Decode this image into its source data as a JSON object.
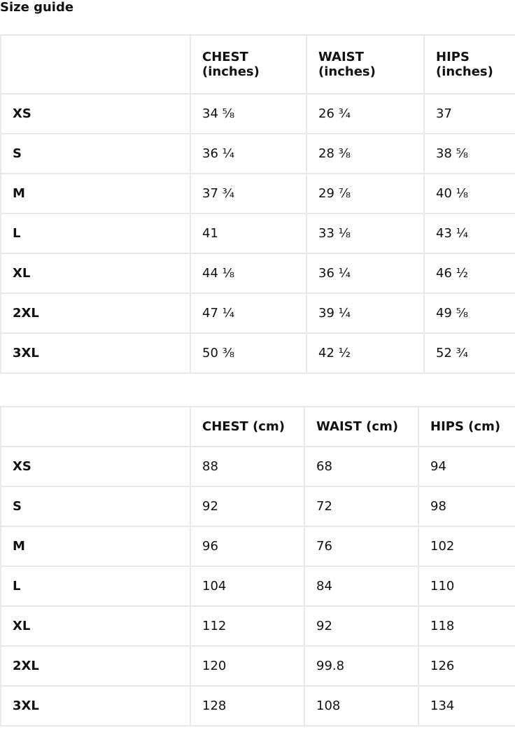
{
  "title": "Size guide",
  "inches_table": {
    "headers": [
      "",
      "CHEST (inches)",
      "WAIST (inches)",
      "HIPS (inches)"
    ],
    "rows": [
      [
        "XS",
        "34 ⅝",
        "26 ¾",
        "37"
      ],
      [
        "S",
        "36 ¼",
        "28 ⅜",
        "38 ⅝"
      ],
      [
        "M",
        "37 ¾",
        "29 ⅞",
        "40 ⅛"
      ],
      [
        "L",
        "41",
        "33 ⅛",
        "43 ¼"
      ],
      [
        "XL",
        "44 ⅛",
        "36 ¼",
        "46 ½"
      ],
      [
        "2XL",
        "47 ¼",
        "39 ¼",
        "49 ⅝"
      ],
      [
        "3XL",
        "50 ⅜",
        "42 ½",
        "52 ¾"
      ]
    ]
  },
  "cm_table": {
    "headers": [
      "",
      "CHEST (cm)",
      "WAIST (cm)",
      "HIPS (cm)"
    ],
    "rows": [
      [
        "XS",
        "88",
        "68",
        "94"
      ],
      [
        "S",
        "92",
        "72",
        "98"
      ],
      [
        "M",
        "96",
        "76",
        "102"
      ],
      [
        "L",
        "104",
        "84",
        "110"
      ],
      [
        "XL",
        "112",
        "92",
        "118"
      ],
      [
        "2XL",
        "120",
        "99.8",
        "126"
      ],
      [
        "3XL",
        "128",
        "108",
        "134"
      ]
    ]
  }
}
